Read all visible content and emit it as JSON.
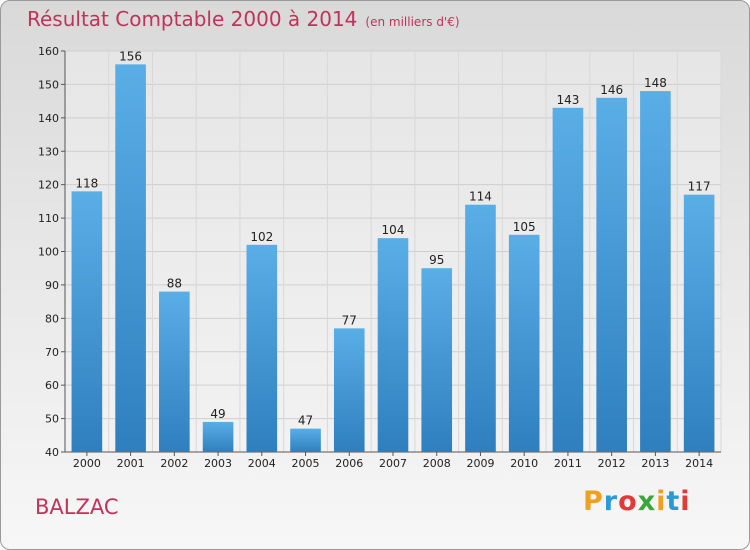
{
  "header": {
    "title": "Résultat Comptable 2000 à 2014",
    "subtitle": "(en milliers d'€)"
  },
  "footer": {
    "commune": "BALZAC",
    "logo_letters": [
      "P",
      "r",
      "o",
      "x",
      "i",
      "t",
      "i"
    ],
    "logo_colors": [
      "#f0a020",
      "#2a9ad6",
      "#e23a3a",
      "#3aa63a",
      "#f0a020",
      "#2a9ad6",
      "#e23a3a"
    ]
  },
  "chart_data": {
    "type": "bar",
    "title": "Résultat Comptable 2000 à 2014",
    "subtitle": "(en milliers d'€)",
    "categories": [
      "2000",
      "2001",
      "2002",
      "2003",
      "2004",
      "2005",
      "2006",
      "2007",
      "2008",
      "2009",
      "2010",
      "2011",
      "2012",
      "2013",
      "2014"
    ],
    "values": [
      118,
      156,
      88,
      49,
      102,
      47,
      77,
      104,
      95,
      114,
      105,
      143,
      146,
      148,
      117
    ],
    "ylim": [
      40,
      160
    ],
    "yticks": [
      40,
      50,
      60,
      70,
      80,
      90,
      100,
      110,
      120,
      130,
      140,
      150,
      160
    ],
    "grid": true,
    "bar_color_top": "#5aaee6",
    "bar_color_bottom": "#2f7fbf"
  }
}
